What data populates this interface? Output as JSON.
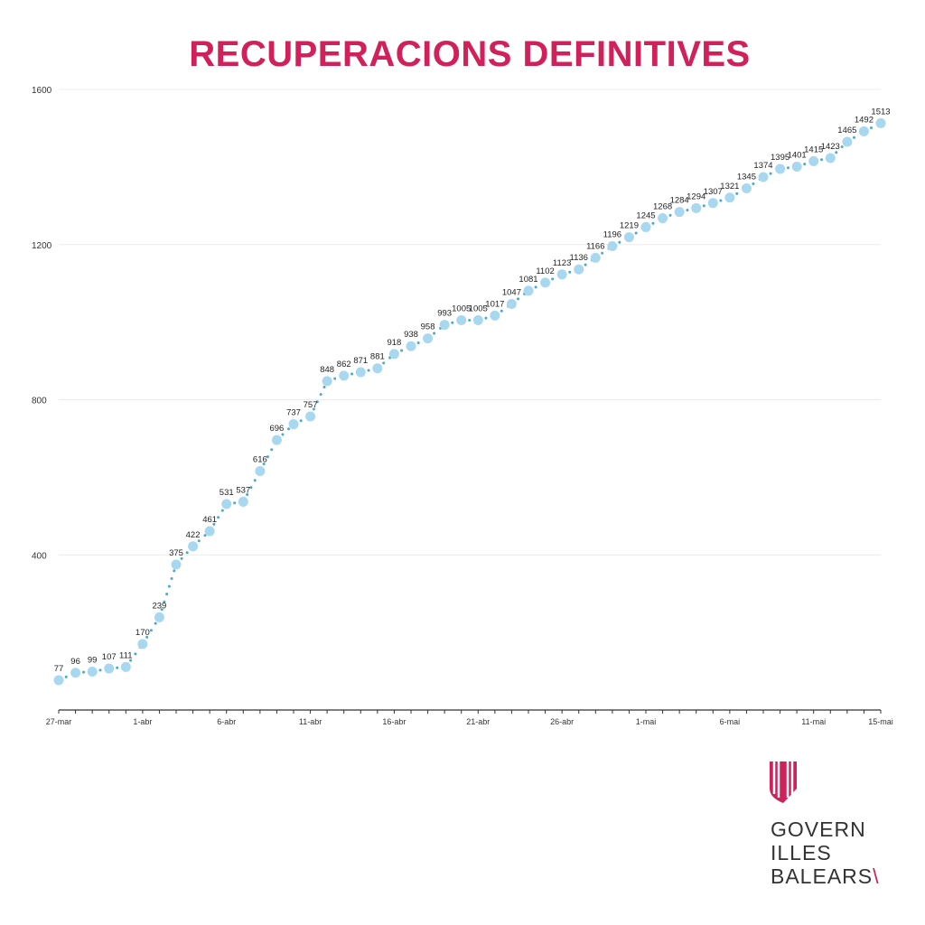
{
  "chart_data": {
    "type": "scatter",
    "title": "RECUPERACIONS DEFINITIVES",
    "xlabel": "",
    "ylabel": "",
    "ylim": [
      0,
      1600
    ],
    "yticks": [
      400,
      800,
      1200,
      1600
    ],
    "grid": true,
    "start_date": "27-mar",
    "xtick_labels": [
      "27-mar",
      "1-abr",
      "6-abr",
      "11-abr",
      "16-abr",
      "21-abr",
      "26-abr",
      "1-mai",
      "6-mai",
      "11-mai",
      "15-mai"
    ],
    "xtick_days": [
      0,
      5,
      10,
      15,
      20,
      25,
      30,
      35,
      40,
      45,
      49
    ],
    "values": [
      77,
      96,
      99,
      107,
      111,
      170,
      239,
      375,
      422,
      461,
      531,
      537,
      616,
      696,
      737,
      757,
      848,
      862,
      871,
      881,
      918,
      938,
      958,
      993,
      1005,
      1005,
      1017,
      1047,
      1081,
      1102,
      1123,
      1136,
      1166,
      1196,
      1219,
      1245,
      1268,
      1284,
      1294,
      1307,
      1321,
      1345,
      1374,
      1395,
      1401,
      1415,
      1423,
      1465,
      1492,
      1513
    ],
    "point_color": "#a8d8ef",
    "line_color": "#4aa8cc"
  },
  "logo": {
    "lines": [
      "GOVERN",
      "ILLES",
      "BALEARS"
    ],
    "color": "#d0215a"
  }
}
